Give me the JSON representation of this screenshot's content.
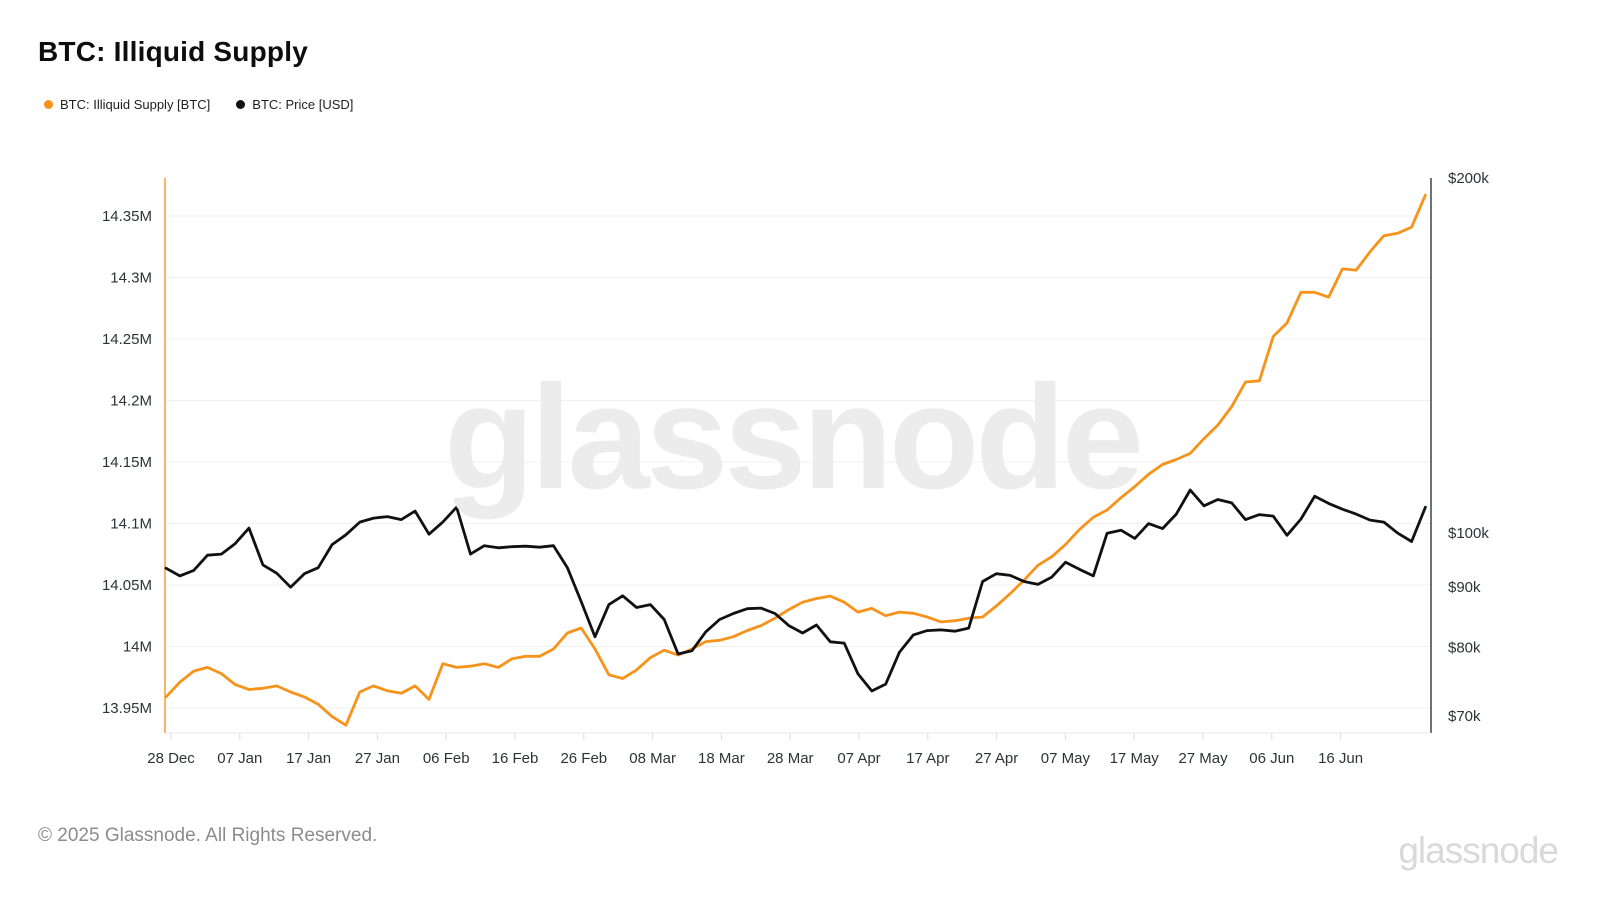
{
  "title": "BTC: Illiquid Supply",
  "legend": [
    {
      "label": "BTC: Illiquid Supply [BTC]",
      "color": "#F7931A"
    },
    {
      "label": "BTC: Price [USD]",
      "color": "#111111"
    }
  ],
  "watermark": "glassnode",
  "footer": {
    "copyright": "© 2025 Glassnode. All Rights Reserved.",
    "brand": "glassnode"
  },
  "chart_data": {
    "type": "line",
    "title": "BTC: Illiquid Supply",
    "x_tick_labels": [
      "28 Dec",
      "07 Jan",
      "17 Jan",
      "27 Jan",
      "06 Feb",
      "16 Feb",
      "26 Feb",
      "08 Mar",
      "18 Mar",
      "28 Mar",
      "07 Apr",
      "17 Apr",
      "27 Apr",
      "07 May",
      "17 May",
      "27 May",
      "06 Jun",
      "16 Jun"
    ],
    "left_axis": {
      "unit": "M BTC",
      "scale": "linear",
      "ticks": [
        {
          "label": "14.35M",
          "value": 14.35
        },
        {
          "label": "14.3M",
          "value": 14.3
        },
        {
          "label": "14.25M",
          "value": 14.25
        },
        {
          "label": "14.2M",
          "value": 14.2
        },
        {
          "label": "14.15M",
          "value": 14.15
        },
        {
          "label": "14.1M",
          "value": 14.1
        },
        {
          "label": "14.05M",
          "value": 14.05
        },
        {
          "label": "14M",
          "value": 14.0
        },
        {
          "label": "13.95M",
          "value": 13.95
        }
      ]
    },
    "right_axis": {
      "unit": "USD",
      "scale": "log",
      "ticks": [
        {
          "label": "$200k",
          "value": 200
        },
        {
          "label": "$100k",
          "value": 100
        },
        {
          "label": "$90k",
          "value": 90
        },
        {
          "label": "$80k",
          "value": 80
        },
        {
          "label": "$70k",
          "value": 70
        }
      ]
    },
    "series": [
      {
        "name": "BTC: Illiquid Supply [BTC]",
        "color": "#F7931A",
        "axis": "left",
        "unit": "M BTC",
        "start_label": "28 Dec",
        "step_days": 2,
        "values": [
          13.959,
          13.971,
          13.98,
          13.983,
          13.978,
          13.969,
          13.965,
          13.966,
          13.968,
          13.963,
          13.959,
          13.953,
          13.943,
          13.936,
          13.963,
          13.968,
          13.964,
          13.962,
          13.968,
          13.957,
          13.986,
          13.983,
          13.984,
          13.986,
          13.983,
          13.99,
          13.992,
          13.992,
          13.998,
          14.011,
          14.015,
          13.998,
          13.977,
          13.974,
          13.981,
          13.991,
          13.997,
          13.993,
          13.998,
          14.004,
          14.005,
          14.008,
          14.013,
          14.017,
          14.023,
          14.03,
          14.036,
          14.039,
          14.041,
          14.036,
          14.028,
          14.031,
          14.025,
          14.028,
          14.027,
          14.024,
          14.02,
          14.021,
          14.023,
          14.024,
          14.033,
          14.043,
          14.054,
          14.066,
          14.073,
          14.083,
          14.095,
          14.105,
          14.111,
          14.121,
          14.13,
          14.14,
          14.148,
          14.152,
          14.157,
          14.169,
          14.18,
          14.195,
          14.215,
          14.216,
          14.252,
          14.263,
          14.288,
          14.288,
          14.284,
          14.307,
          14.306,
          14.321,
          14.334,
          14.336,
          14.341,
          14.367
        ]
      },
      {
        "name": "BTC: Price [USD]",
        "color": "#111111",
        "axis": "right",
        "unit": "k USD",
        "start_label": "28 Dec",
        "step_days": 2,
        "values": [
          93.4,
          92.0,
          93.0,
          95.8,
          96.0,
          98.0,
          101.0,
          94.0,
          92.5,
          90.0,
          92.4,
          93.5,
          97.8,
          99.7,
          102.2,
          103.0,
          103.3,
          102.7,
          104.4,
          99.8,
          102.2,
          105.2,
          96.0,
          97.6,
          97.2,
          97.4,
          97.5,
          97.3,
          97.6,
          93.5,
          87.5,
          81.7,
          87.0,
          88.5,
          86.5,
          87.0,
          84.5,
          79.0,
          79.5,
          82.5,
          84.5,
          85.5,
          86.3,
          86.4,
          85.5,
          83.5,
          82.3,
          83.6,
          80.9,
          80.7,
          76.0,
          73.5,
          74.5,
          79.3,
          82.0,
          82.7,
          82.8,
          82.6,
          83.1,
          91.0,
          92.4,
          92.1,
          91.0,
          90.5,
          91.8,
          94.5,
          93.2,
          92.0,
          100.0,
          100.6,
          99.0,
          101.9,
          100.9,
          103.8,
          108.8,
          105.5,
          106.8,
          106.1,
          102.7,
          103.7,
          103.4,
          99.6,
          102.8,
          107.5,
          106.0,
          104.8,
          103.8,
          102.6,
          102.2,
          100.0,
          98.4,
          105.2
        ]
      }
    ]
  }
}
